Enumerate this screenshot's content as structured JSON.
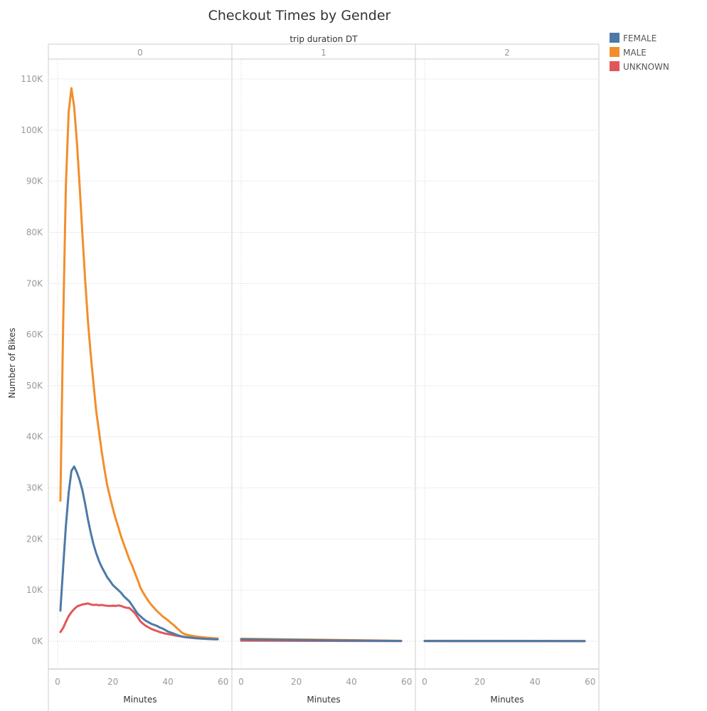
{
  "chart_data": {
    "type": "line",
    "title": "Checkout Times by Gender",
    "column_header": "trip duration DT",
    "panels": [
      "0",
      "1",
      "2"
    ],
    "ylabel": "Number of Bikes",
    "xlabel": "Minutes",
    "ylim": [
      -5500,
      112000
    ],
    "xlim": [
      -3,
      63
    ],
    "y_ticks": [
      0,
      10000,
      20000,
      30000,
      40000,
      50000,
      60000,
      70000,
      80000,
      90000,
      100000,
      110000
    ],
    "y_tick_labels": [
      "0K",
      "10K",
      "20K",
      "30K",
      "40K",
      "50K",
      "60K",
      "70K",
      "80K",
      "90K",
      "100K",
      "110K"
    ],
    "x_ticks": [
      0,
      20,
      40,
      60
    ],
    "x_tick_labels": [
      "0",
      "20",
      "40",
      "60"
    ],
    "legend_position": "top-right",
    "legend_entries": [
      "FEMALE",
      "MALE",
      "UNKNOWN"
    ],
    "series": [
      {
        "name": "FEMALE",
        "color": "#4e79a7",
        "panels": [
          {
            "x": [
              1,
              2,
              3,
              4,
              5,
              6,
              7,
              8,
              9,
              10,
              11,
              12,
              13,
              14,
              15,
              16,
              17,
              18,
              19,
              20,
              21,
              22,
              23,
              24,
              25,
              26,
              27,
              28,
              29,
              30,
              31,
              32,
              33,
              34,
              35,
              36,
              37,
              38,
              39,
              40,
              41,
              42,
              43,
              44,
              45,
              46,
              47,
              48,
              49,
              50,
              51,
              52,
              53,
              54,
              55,
              56,
              57,
              58
            ],
            "y": [
              6000,
              14500,
              22500,
              29000,
              33300,
              34200,
              33000,
              31500,
              29500,
              26800,
              23800,
              21200,
              19000,
              17200,
              15700,
              14500,
              13500,
              12500,
              11800,
              11000,
              10500,
              10000,
              9500,
              8800,
              8300,
              7800,
              7000,
              6200,
              5400,
              4900,
              4400,
              4000,
              3700,
              3400,
              3200,
              3000,
              2700,
              2500,
              2200,
              1900,
              1700,
              1500,
              1300,
              1100,
              950,
              850,
              780,
              720,
              660,
              600,
              560,
              520,
              490,
              460,
              430,
              410,
              390,
              380
            ]
          },
          {
            "x": [
              0,
              58
            ],
            "y": [
              350,
              60
            ]
          },
          {
            "x": [
              0,
              58
            ],
            "y": [
              60,
              40
            ]
          }
        ]
      },
      {
        "name": "MALE",
        "color": "#f28e2b",
        "panels": [
          {
            "x": [
              1,
              2,
              3,
              4,
              5,
              6,
              7,
              8,
              9,
              10,
              11,
              12,
              13,
              14,
              15,
              16,
              17,
              18,
              19,
              20,
              21,
              22,
              23,
              24,
              25,
              26,
              27,
              28,
              29,
              30,
              31,
              32,
              33,
              34,
              35,
              36,
              37,
              38,
              39,
              40,
              41,
              42,
              43,
              44,
              45,
              46,
              47,
              48,
              49,
              50,
              51,
              52,
              53,
              54,
              55,
              56,
              57,
              58
            ],
            "y": [
              27500,
              62000,
              89000,
              103500,
              108200,
              104500,
              97500,
              89000,
              79500,
              70500,
              62500,
              56000,
              50500,
              45000,
              41000,
              37000,
              33500,
              30500,
              28200,
              26000,
              24000,
              22300,
              20500,
              19000,
              17500,
              16000,
              14800,
              13400,
              12000,
              10500,
              9500,
              8600,
              7800,
              7100,
              6500,
              5900,
              5400,
              4900,
              4500,
              4100,
              3600,
              3200,
              2700,
              2200,
              1700,
              1400,
              1250,
              1150,
              1050,
              950,
              880,
              820,
              760,
              700,
              650,
              610,
              570,
              540
            ]
          },
          {
            "x": [
              0,
              58
            ],
            "y": [
              500,
              80
            ]
          },
          {
            "x": [
              0,
              58
            ],
            "y": [
              80,
              50
            ]
          }
        ]
      },
      {
        "name": "UNKNOWN",
        "color": "#e15759",
        "panels": [
          {
            "x": [
              1,
              2,
              3,
              4,
              5,
              6,
              7,
              8,
              9,
              10,
              11,
              12,
              13,
              14,
              15,
              16,
              17,
              18,
              19,
              20,
              21,
              22,
              23,
              24,
              25,
              26,
              27,
              28,
              29,
              30,
              31,
              32,
              33,
              34,
              35,
              36,
              37,
              38,
              39,
              40,
              41,
              42,
              43,
              44,
              45,
              46,
              47,
              48,
              49,
              50,
              51,
              52,
              53,
              54,
              55,
              56,
              57,
              58
            ],
            "y": [
              1800,
              2600,
              3800,
              4900,
              5700,
              6300,
              6800,
              7000,
              7200,
              7300,
              7400,
              7200,
              7100,
              7150,
              7050,
              7100,
              7000,
              6950,
              6900,
              6950,
              6900,
              7000,
              6900,
              6700,
              6550,
              6500,
              6000,
              5500,
              4700,
              3900,
              3400,
              3000,
              2700,
              2400,
              2200,
              2000,
              1800,
              1650,
              1500,
              1400,
              1300,
              1200,
              1100,
              1000,
              900,
              820,
              760,
              700,
              650,
              610,
              580,
              550,
              520,
              500,
              480,
              460,
              440,
              430
            ]
          },
          {
            "x": [
              0,
              58
            ],
            "y": [
              120,
              30
            ]
          },
          {
            "x": [
              0,
              58
            ],
            "y": [
              30,
              20
            ]
          }
        ]
      }
    ]
  }
}
